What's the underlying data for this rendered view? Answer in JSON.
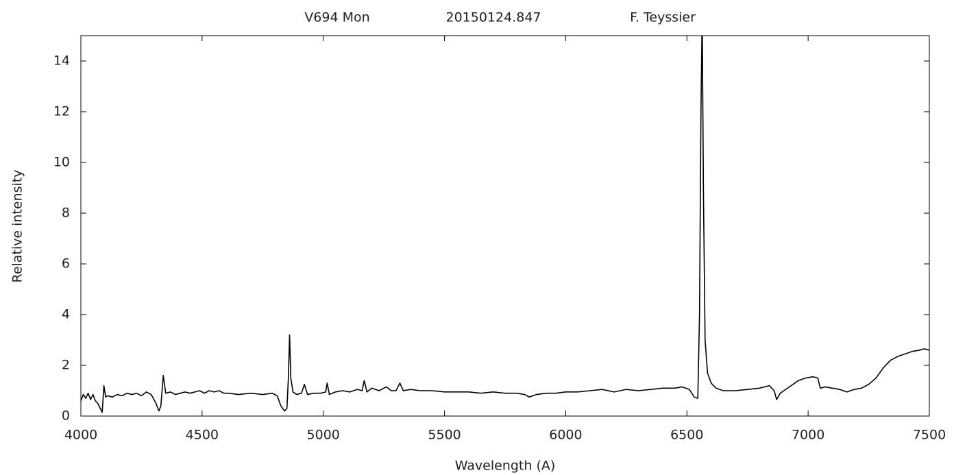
{
  "chart_data": {
    "type": "line",
    "title": [
      "V694 Mon",
      "20150124.847",
      "F. Teyssier"
    ],
    "x_label": "Wavelength (A)",
    "y_label": "Relative intensity",
    "xlim": [
      4000,
      7500
    ],
    "ylim": [
      0,
      15
    ],
    "xticks": [
      4000,
      4500,
      5000,
      5500,
      6000,
      6500,
      7000,
      7500
    ],
    "yticks": [
      0,
      2,
      4,
      6,
      8,
      10,
      12,
      14
    ],
    "grid": false,
    "series": [
      {
        "color": "#000000",
        "x": [
          4000,
          4010,
          4020,
          4030,
          4040,
          4050,
          4060,
          4070,
          4080,
          4088,
          4095,
          4102,
          4110,
          4130,
          4150,
          4170,
          4190,
          4210,
          4230,
          4250,
          4270,
          4290,
          4310,
          4322,
          4330,
          4340,
          4350,
          4370,
          4390,
          4410,
          4430,
          4450,
          4470,
          4490,
          4510,
          4530,
          4550,
          4570,
          4590,
          4610,
          4650,
          4700,
          4750,
          4790,
          4810,
          4825,
          4840,
          4850,
          4856,
          4861,
          4866,
          4875,
          4890,
          4910,
          4922,
          4935,
          4960,
          4990,
          5010,
          5016,
          5025,
          5050,
          5080,
          5110,
          5140,
          5160,
          5169,
          5180,
          5200,
          5230,
          5260,
          5280,
          5300,
          5316,
          5330,
          5360,
          5400,
          5450,
          5500,
          5550,
          5600,
          5650,
          5700,
          5750,
          5800,
          5830,
          5850,
          5880,
          5920,
          5960,
          6000,
          6050,
          6100,
          6150,
          6200,
          6250,
          6300,
          6350,
          6400,
          6450,
          6480,
          6510,
          6530,
          6545,
          6552,
          6558,
          6563,
          6568,
          6575,
          6585,
          6600,
          6620,
          6650,
          6700,
          6750,
          6800,
          6840,
          6860,
          6870,
          6885,
          6900,
          6930,
          6960,
          6990,
          7020,
          7040,
          7050,
          7070,
          7100,
          7130,
          7160,
          7190,
          7220,
          7250,
          7280,
          7310,
          7340,
          7370,
          7400,
          7430,
          7460,
          7480,
          7500
        ],
        "values": [
          0.6,
          0.85,
          0.7,
          0.9,
          0.65,
          0.85,
          0.6,
          0.5,
          0.3,
          0.15,
          1.2,
          0.75,
          0.8,
          0.75,
          0.85,
          0.8,
          0.9,
          0.85,
          0.9,
          0.8,
          0.95,
          0.85,
          0.5,
          0.2,
          0.4,
          1.6,
          0.9,
          0.95,
          0.85,
          0.9,
          0.95,
          0.9,
          0.95,
          1.0,
          0.9,
          1.0,
          0.95,
          1.0,
          0.9,
          0.9,
          0.85,
          0.9,
          0.85,
          0.9,
          0.8,
          0.4,
          0.2,
          0.3,
          1.5,
          3.2,
          1.5,
          0.95,
          0.85,
          0.9,
          1.25,
          0.85,
          0.9,
          0.9,
          0.95,
          1.3,
          0.85,
          0.95,
          1.0,
          0.95,
          1.05,
          1.0,
          1.4,
          0.95,
          1.1,
          1.0,
          1.15,
          1.0,
          1.0,
          1.3,
          1.0,
          1.05,
          1.0,
          1.0,
          0.95,
          0.95,
          0.95,
          0.9,
          0.95,
          0.9,
          0.9,
          0.85,
          0.75,
          0.85,
          0.9,
          0.9,
          0.95,
          0.95,
          1.0,
          1.05,
          0.95,
          1.05,
          1.0,
          1.05,
          1.1,
          1.1,
          1.15,
          1.05,
          0.75,
          0.7,
          4.0,
          12.0,
          16.0,
          9.0,
          3.0,
          1.7,
          1.3,
          1.1,
          1.0,
          1.0,
          1.05,
          1.1,
          1.2,
          1.0,
          0.65,
          0.9,
          1.0,
          1.2,
          1.4,
          1.5,
          1.55,
          1.5,
          1.1,
          1.15,
          1.1,
          1.05,
          0.95,
          1.05,
          1.1,
          1.25,
          1.5,
          1.9,
          2.2,
          2.35,
          2.45,
          2.55,
          2.6,
          2.65,
          2.6
        ]
      }
    ]
  }
}
